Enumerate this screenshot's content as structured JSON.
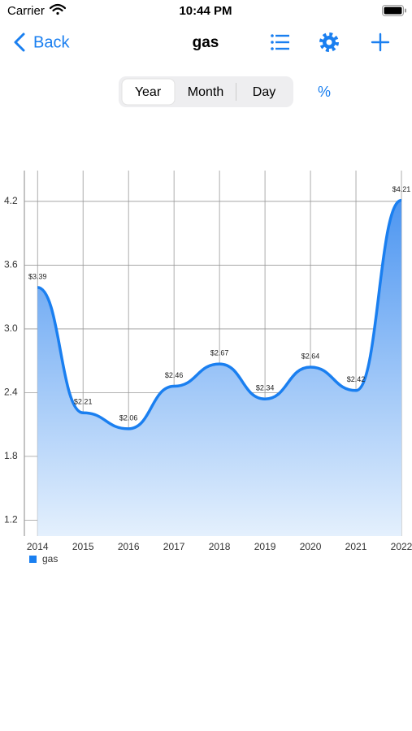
{
  "status": {
    "carrier": "Carrier",
    "time": "10:44 PM"
  },
  "nav": {
    "back": "Back",
    "title": "gas"
  },
  "segments": [
    "Year",
    "Month",
    "Day"
  ],
  "percent": "%",
  "chart_data": {
    "type": "line",
    "x": [
      2014,
      2015,
      2016,
      2017,
      2018,
      2019,
      2020,
      2021,
      2022
    ],
    "series": [
      {
        "name": "gas",
        "color": "#1a7ff0",
        "values": [
          3.39,
          2.21,
          2.06,
          2.46,
          2.67,
          2.34,
          2.64,
          2.42,
          4.21
        ],
        "value_labels": [
          "$3.39",
          "$2.21",
          "$2.06",
          "$2.46",
          "$2.67",
          "$2.34",
          "$2.64",
          "$2.42",
          "$4.21"
        ]
      }
    ],
    "xlim": [
      2013.71,
      2022
    ],
    "xticks": [
      2014,
      2015,
      2016,
      2017,
      2018,
      2019,
      2020,
      2021,
      2022
    ],
    "ylim": [
      1.05,
      4.49
    ],
    "yticks": [
      {
        "value": 1.2,
        "label": "1.2"
      },
      {
        "value": 1.8,
        "label": "1.8"
      },
      {
        "value": 2.4,
        "label": "2.4"
      },
      {
        "value": 3.0,
        "label": "3.0"
      },
      {
        "value": 3.6,
        "label": "3.6"
      },
      {
        "value": 4.2,
        "label": "4.2"
      }
    ],
    "grid": true,
    "legend": "bottom-left"
  }
}
